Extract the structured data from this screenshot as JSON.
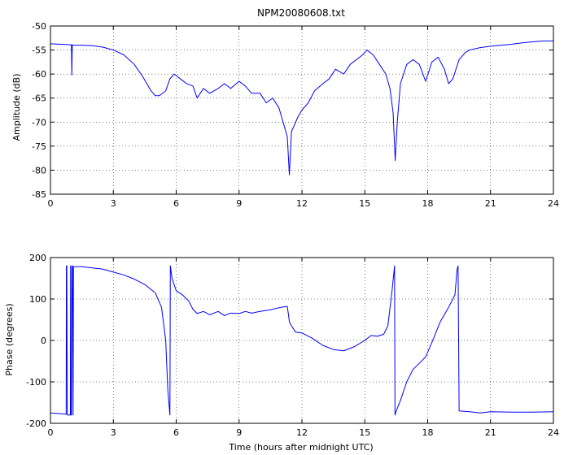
{
  "chart_data": [
    {
      "type": "line",
      "title": "NPM20080608.txt",
      "xlabel": "",
      "ylabel": "Amplitude (dB)",
      "xlim": [
        0,
        24
      ],
      "ylim": [
        -85,
        -50
      ],
      "xticks": [
        "0",
        "3",
        "6",
        "9",
        "12",
        "15",
        "18",
        "21",
        "24"
      ],
      "yticks": [
        "-85",
        "-80",
        "-75",
        "-70",
        "-65",
        "-60",
        "-55",
        "-50"
      ],
      "grid": true,
      "color": "#0000ff",
      "series": [
        {
          "x": [
            0,
            0.5,
            1.0,
            1.02,
            1.04,
            1.06,
            1.1,
            1.5,
            2.0,
            2.5,
            3.0,
            3.5,
            4.0,
            4.4,
            4.8,
            5.0,
            5.2,
            5.5,
            5.7,
            5.9,
            6.2,
            6.5,
            6.8,
            7.0,
            7.3,
            7.6,
            8.0,
            8.3,
            8.6,
            9.0,
            9.3,
            9.6,
            10.0,
            10.3,
            10.6,
            10.9,
            11.1,
            11.3,
            11.4,
            11.5,
            11.6,
            11.8,
            12.0,
            12.3,
            12.6,
            13.0,
            13.3,
            13.6,
            14.0,
            14.3,
            14.6,
            14.9,
            15.1,
            15.4,
            15.7,
            16.0,
            16.2,
            16.35,
            16.45,
            16.55,
            16.7,
            17.0,
            17.3,
            17.6,
            17.9,
            18.2,
            18.5,
            18.8,
            19.0,
            19.2,
            19.5,
            19.8,
            20.0,
            20.5,
            21.0,
            21.5,
            22.0,
            22.5,
            23.0,
            23.5,
            24.0
          ],
          "y": [
            -53.7,
            -53.8,
            -53.9,
            -60.2,
            -53.9,
            -54.0,
            -54.0,
            -54.0,
            -54.1,
            -54.4,
            -55.0,
            -56.0,
            -58.0,
            -60.5,
            -63.5,
            -64.5,
            -64.5,
            -63.5,
            -61.0,
            -60.0,
            -61.0,
            -62.0,
            -62.5,
            -65.0,
            -63.0,
            -64.0,
            -63.0,
            -62.0,
            -63.0,
            -61.5,
            -62.5,
            -64.0,
            -64.0,
            -66.0,
            -65.0,
            -67.0,
            -70.0,
            -73.0,
            -81.0,
            -72.0,
            -71.0,
            -69.0,
            -67.5,
            -66.0,
            -63.5,
            -62.0,
            -61.0,
            -59.0,
            -60.0,
            -58.0,
            -57.0,
            -56.0,
            -55.0,
            -56.0,
            -58.0,
            -60.0,
            -63.0,
            -68.0,
            -78.0,
            -70.0,
            -62.0,
            -58.0,
            -57.0,
            -58.0,
            -61.5,
            -57.5,
            -56.5,
            -59.0,
            -62.0,
            -61.0,
            -57.0,
            -55.5,
            -55.0,
            -54.5,
            -54.2,
            -54.0,
            -53.8,
            -53.5,
            -53.3,
            -53.1,
            -53.1
          ]
        }
      ]
    },
    {
      "type": "line",
      "title": "",
      "xlabel": "Time (hours after midnight UTC)",
      "ylabel": "Phase (degrees)",
      "xlim": [
        0,
        24
      ],
      "ylim": [
        -200,
        200
      ],
      "xticks": [
        "0",
        "3",
        "6",
        "9",
        "12",
        "15",
        "18",
        "21",
        "24"
      ],
      "yticks": [
        "-200",
        "-100",
        "0",
        "100",
        "200"
      ],
      "grid": true,
      "color": "#0000ff",
      "series": [
        {
          "x": [
            0,
            0.5,
            0.75,
            0.76,
            0.78,
            0.8,
            0.82,
            0.95,
            0.96,
            0.97,
            1.0,
            1.02,
            1.05,
            1.08,
            1.1,
            1.5,
            2.0,
            2.5,
            3.0,
            3.5,
            4.0,
            4.5,
            5.0,
            5.3,
            5.5,
            5.6,
            5.7,
            5.72,
            5.8,
            6.0,
            6.3,
            6.6,
            6.8,
            7.0,
            7.3,
            7.6,
            8.0,
            8.3,
            8.6,
            9.0,
            9.3,
            9.6,
            10.0,
            10.5,
            11.0,
            11.3,
            11.35,
            11.4,
            11.5,
            11.7,
            12.0,
            12.5,
            13.0,
            13.5,
            14.0,
            14.5,
            15.0,
            15.3,
            15.6,
            15.9,
            16.1,
            16.3,
            16.42,
            16.44,
            16.5,
            16.7,
            17.0,
            17.3,
            17.6,
            17.9,
            18.2,
            18.6,
            19.0,
            19.3,
            19.4,
            19.45,
            19.5,
            20.0,
            20.5,
            21.0,
            22.0,
            23.0,
            24.0
          ],
          "y": [
            -175,
            -177,
            -178,
            180,
            180,
            -180,
            -180,
            -180,
            180,
            -180,
            -180,
            180,
            180,
            -180,
            178,
            178,
            175,
            172,
            165,
            158,
            148,
            135,
            115,
            80,
            0,
            -120,
            -180,
            180,
            150,
            120,
            110,
            95,
            75,
            65,
            70,
            62,
            70,
            60,
            66,
            65,
            70,
            66,
            70,
            74,
            80,
            82,
            65,
            45,
            35,
            20,
            18,
            5,
            -12,
            -22,
            -25,
            -15,
            0,
            12,
            10,
            15,
            35,
            120,
            180,
            -180,
            -170,
            -145,
            -100,
            -70,
            -55,
            -40,
            -5,
            45,
            80,
            110,
            170,
            180,
            -170,
            -172,
            -175,
            -172,
            -173,
            -173,
            -172
          ]
        }
      ]
    }
  ]
}
